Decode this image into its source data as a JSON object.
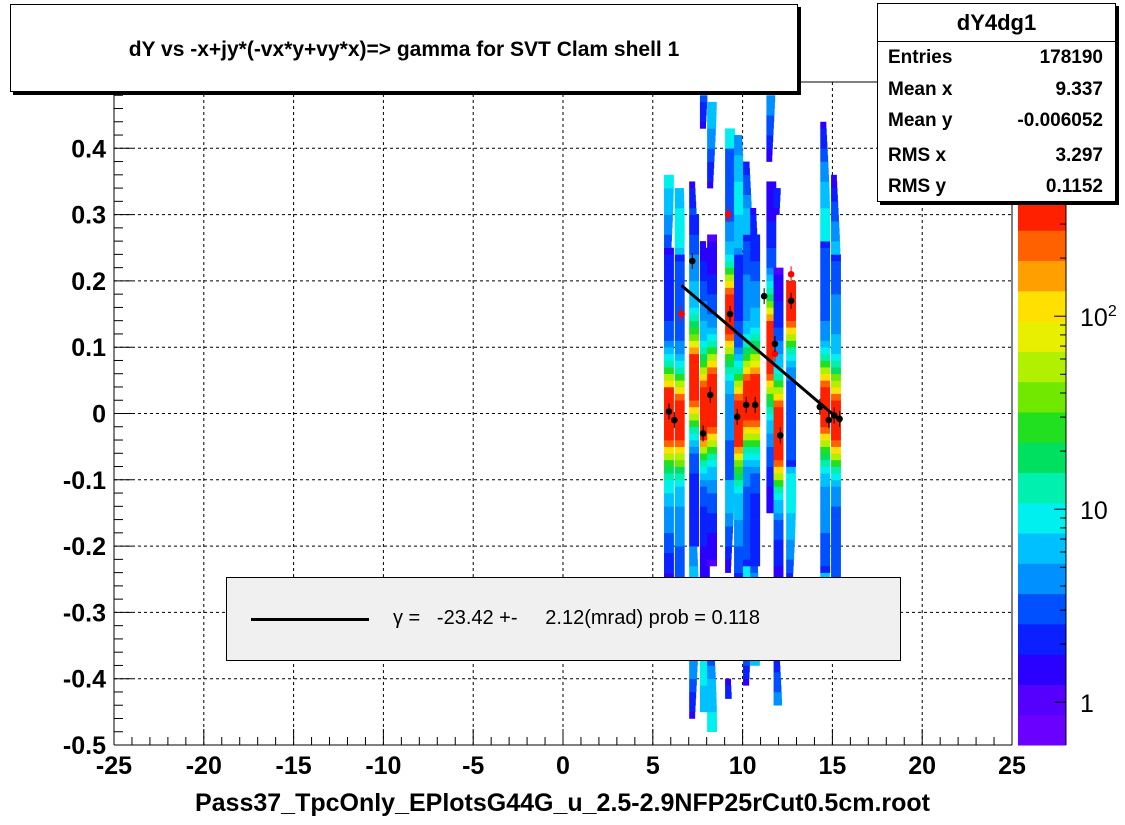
{
  "chart_data": {
    "type": "heatmap",
    "title": "dY vs -x+jy*(-vx*y+vy*x)=> gamma for SVT Clam shell 1",
    "xlabel": "Pass37_TpcOnly_EPlotsG44G_u_2.5-2.9NFP25rCut0.5cm.root",
    "ylabel": "",
    "xlim": [
      -25,
      25
    ],
    "ylim": [
      -0.5,
      0.5
    ],
    "x_ticks": [
      "-25",
      "-20",
      "-15",
      "-10",
      "-5",
      "0",
      "5",
      "10",
      "15",
      "20",
      "25"
    ],
    "y_ticks": [
      "-0.5",
      "-0.4",
      "-0.3",
      "-0.2",
      "-0.1",
      "0",
      "0.1",
      "0.2",
      "0.3",
      "0.4"
    ],
    "grid": true,
    "z_scale": "log",
    "z_ticks": [
      {
        "value": 1,
        "label": "1"
      },
      {
        "value": 10,
        "label": "10"
      },
      {
        "value": 100,
        "label": "10",
        "sup": "2"
      }
    ],
    "z_range": [
      0.6,
      400
    ],
    "palette": [
      "#6a00ff",
      "#5500ff",
      "#2a00ff",
      "#0a20ff",
      "#0050ff",
      "#0090ff",
      "#00c0ff",
      "#00f0f0",
      "#00f0b0",
      "#00e060",
      "#20e020",
      "#70e800",
      "#b0f000",
      "#e8f000",
      "#ffe000",
      "#ffa000",
      "#ff6000",
      "#ff2000"
    ],
    "stripes": [
      {
        "x": 5.9,
        "y0": -0.25,
        "y1": 0.36,
        "peak": 0.0
      },
      {
        "x": 6.5,
        "y0": -0.25,
        "y1": 0.34,
        "peak": -0.01
      },
      {
        "x": 7.3,
        "y0": -0.49,
        "y1": 0.49,
        "peak": 0.05
      },
      {
        "x": 7.9,
        "y0": -0.45,
        "y1": 0.48,
        "peak": 0.0
      },
      {
        "x": 8.3,
        "y0": -0.48,
        "y1": 0.47,
        "peak": 0.02
      },
      {
        "x": 9.3,
        "y0": -0.43,
        "y1": 0.43,
        "peak": 0.15
      },
      {
        "x": 9.8,
        "y0": -0.44,
        "y1": 0.42,
        "peak": -0.01
      },
      {
        "x": 10.3,
        "y0": -0.45,
        "y1": 0.38,
        "peak": 0.02
      },
      {
        "x": 10.7,
        "y0": -0.38,
        "y1": 0.37,
        "peak": 0.02
      },
      {
        "x": 11.6,
        "y0": -0.25,
        "y1": 0.48,
        "peak": 0.1
      },
      {
        "x": 12.0,
        "y0": -0.44,
        "y1": 0.34,
        "peak": -0.03
      },
      {
        "x": 12.7,
        "y0": -0.25,
        "y1": 0.2,
        "peak": 0.17
      },
      {
        "x": 14.6,
        "y0": -0.5,
        "y1": 0.49,
        "peak": 0.01
      },
      {
        "x": 15.2,
        "y0": -0.3,
        "y1": 0.5,
        "peak": -0.01
      }
    ],
    "points": [
      {
        "x": 5.9,
        "y": 0.003,
        "color": "#000000"
      },
      {
        "x": 6.2,
        "y": -0.01,
        "color": "#000000"
      },
      {
        "x": 6.6,
        "y": 0.15,
        "color": "#ff0000"
      },
      {
        "x": 7.2,
        "y": 0.23,
        "color": "#000000"
      },
      {
        "x": 7.8,
        "y": -0.03,
        "color": "#000000"
      },
      {
        "x": 8.2,
        "y": 0.028,
        "color": "#000000"
      },
      {
        "x": 9.2,
        "y": 0.3,
        "color": "#ff0000"
      },
      {
        "x": 9.3,
        "y": 0.15,
        "color": "#000000"
      },
      {
        "x": 9.7,
        "y": -0.005,
        "color": "#000000"
      },
      {
        "x": 10.2,
        "y": 0.013,
        "color": "#000000"
      },
      {
        "x": 10.7,
        "y": 0.013,
        "color": "#000000"
      },
      {
        "x": 11.2,
        "y": 0.177,
        "color": "#000000"
      },
      {
        "x": 11.8,
        "y": 0.09,
        "color": "#ff0000"
      },
      {
        "x": 11.8,
        "y": 0.105,
        "color": "#000000"
      },
      {
        "x": 12.1,
        "y": -0.033,
        "color": "#000000"
      },
      {
        "x": 12.7,
        "y": 0.21,
        "color": "#ff0000"
      },
      {
        "x": 12.7,
        "y": 0.17,
        "color": "#000000"
      },
      {
        "x": 14.3,
        "y": 0.01,
        "color": "#000000"
      },
      {
        "x": 14.8,
        "y": -0.01,
        "color": "#000000"
      },
      {
        "x": 15.1,
        "y": -0.003,
        "color": "#000000"
      },
      {
        "x": 15.4,
        "y": -0.008,
        "color": "#000000"
      }
    ],
    "fit_line": {
      "x0": 6.6,
      "y0": 0.193,
      "x1": 15.5,
      "y1": -0.012
    },
    "legend_text": "γ =   -23.42 +-     2.12(mrad) prob = 0.118"
  },
  "stats": {
    "name": "dY4dg1",
    "rows": [
      {
        "key": "Entries",
        "value": "178190"
      },
      {
        "key": "Mean x",
        "value": "9.337"
      },
      {
        "key": "Mean y",
        "value": "-0.006052"
      },
      {
        "key": "RMS x",
        "value": "3.297"
      },
      {
        "key": "RMS y",
        "value": "0.1152"
      }
    ]
  }
}
